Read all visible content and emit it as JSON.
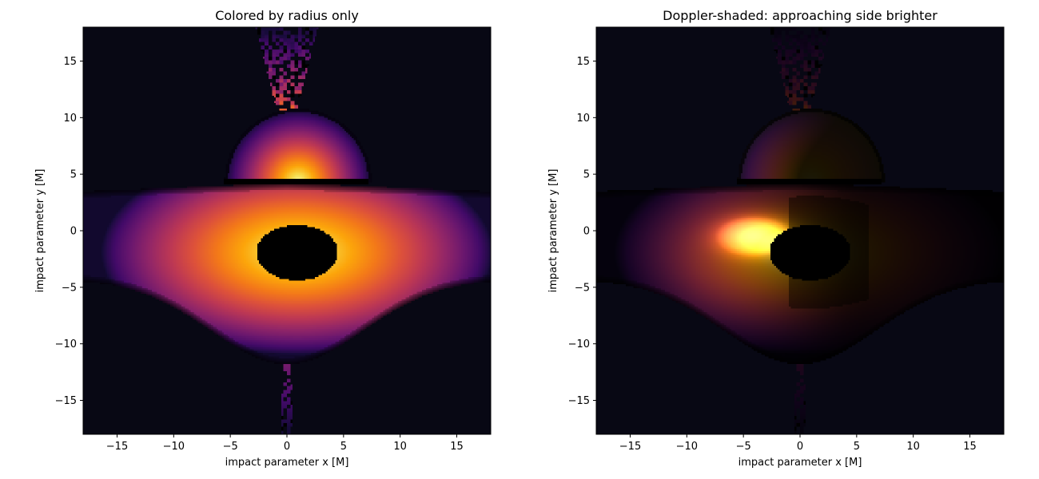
{
  "chart_data": [
    {
      "type": "heatmap",
      "title": "Colored by radius only",
      "xlabel": "impact parameter x [M]",
      "ylabel": "impact parameter y [M]",
      "xlim": [
        -18,
        18
      ],
      "ylim": [
        -18,
        18
      ],
      "xticks": [
        -15,
        -10,
        -5,
        0,
        5,
        10,
        15
      ],
      "yticks": [
        -15,
        -10,
        -5,
        0,
        5,
        10,
        15
      ],
      "xtick_labels": [
        "−15",
        "−10",
        "−5",
        "0",
        "5",
        "10",
        "15"
      ],
      "ytick_labels": [
        "−15",
        "−10",
        "−5",
        "0",
        "5",
        "10",
        "15"
      ],
      "colormap": "inferno",
      "background_color": "#080814",
      "shading": "radius",
      "features": {
        "shadow": {
          "center": [
            0.9,
            -1.9
          ],
          "half_width": 3.6,
          "top": 0.5,
          "bottom": -4.4
        },
        "far_disk_arc": {
          "center": [
            1.0,
            4.3
          ],
          "radius": 6.5
        },
        "disk_band": {
          "x_range": [
            -18,
            18
          ],
          "top_edge": 4.2,
          "bottom_center": -11.8
        },
        "jet_up": {
          "base": [
            0,
            8
          ],
          "top": 18,
          "half_width_top": 2.5
        },
        "jet_down": {
          "top": -5,
          "bottom": -18
        }
      }
    },
    {
      "type": "heatmap",
      "title": "Doppler-shaded: approaching side brighter",
      "xlabel": "impact parameter x [M]",
      "ylabel": "impact parameter y [M]",
      "xlim": [
        -18,
        18
      ],
      "ylim": [
        -18,
        18
      ],
      "xticks": [
        -15,
        -10,
        -5,
        0,
        5,
        10,
        15
      ],
      "yticks": [
        -15,
        -10,
        -5,
        0,
        5,
        10,
        15
      ],
      "xtick_labels": [
        "−15",
        "−10",
        "−5",
        "0",
        "5",
        "10",
        "15"
      ],
      "ytick_labels": [
        "−15",
        "−10",
        "−5",
        "0",
        "5",
        "10",
        "15"
      ],
      "colormap": "inferno",
      "background_color": "#080814",
      "shading": "doppler",
      "features": {
        "shadow": {
          "center": [
            0.9,
            -1.9
          ],
          "half_width": 3.6,
          "top": 0.5,
          "bottom": -4.4
        },
        "far_disk_arc": {
          "center": [
            1.0,
            4.3
          ],
          "radius": 6.5
        },
        "disk_band": {
          "x_range": [
            -18,
            18
          ],
          "top_edge": 4.2,
          "bottom_center": -11.8
        },
        "jet_up": {
          "base": [
            0,
            8
          ],
          "top": 18,
          "half_width_top": 2.5
        },
        "jet_down": {
          "top": -5,
          "bottom": -18
        },
        "hotspot": [
          -4.0,
          -0.5
        ]
      }
    }
  ]
}
